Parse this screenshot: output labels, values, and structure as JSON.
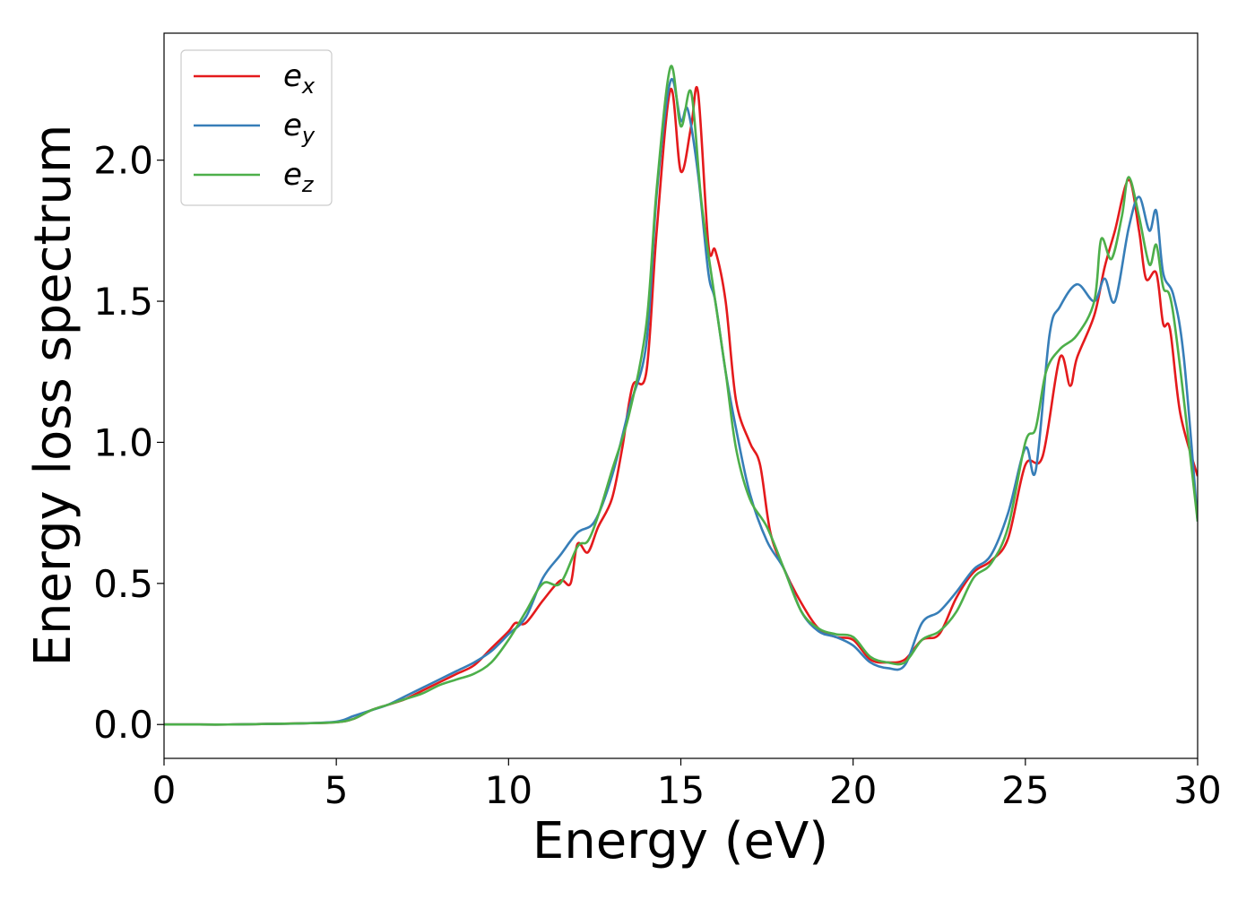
{
  "chart_data": {
    "type": "line",
    "title": "",
    "xlabel": "Energy (eV)",
    "ylabel": "Energy loss spectrum",
    "xlim": [
      0,
      30
    ],
    "ylim": [
      -0.12,
      2.45
    ],
    "xticks": [
      0,
      5,
      10,
      15,
      20,
      25,
      30
    ],
    "xtick_labels": [
      "0",
      "5",
      "10",
      "15",
      "20",
      "25",
      "30"
    ],
    "yticks": [
      0.0,
      0.5,
      1.0,
      1.5,
      2.0
    ],
    "ytick_labels": [
      "0.0",
      "0.5",
      "1.0",
      "1.5",
      "2.0"
    ],
    "grid": false,
    "legend_position": "top-left",
    "series": [
      {
        "name": "e_x",
        "label_main": "e",
        "label_sub": "x",
        "color": "#e41a1c",
        "x": [
          0,
          1,
          2,
          3,
          4,
          5,
          5.5,
          6,
          6.5,
          7,
          7.5,
          8,
          8.5,
          9,
          9.5,
          10,
          10.2,
          10.5,
          11,
          11.5,
          11.8,
          12,
          12.3,
          12.6,
          13,
          13.3,
          13.6,
          14,
          14.3,
          14.7,
          15,
          15.3,
          15.5,
          15.8,
          16,
          16.3,
          16.6,
          17,
          17.3,
          17.6,
          18,
          18.5,
          19,
          19.5,
          20,
          20.5,
          21,
          21.5,
          22,
          22.5,
          23,
          23.5,
          24,
          24.5,
          25,
          25.5,
          26,
          26.3,
          26.5,
          27,
          27.3,
          27.6,
          28,
          28.3,
          28.5,
          28.8,
          29,
          29.2,
          29.5,
          30
        ],
        "y": [
          0,
          0,
          0,
          0.002,
          0.004,
          0.008,
          0.02,
          0.05,
          0.07,
          0.09,
          0.12,
          0.15,
          0.18,
          0.21,
          0.27,
          0.33,
          0.36,
          0.36,
          0.44,
          0.51,
          0.5,
          0.64,
          0.61,
          0.7,
          0.8,
          0.98,
          1.2,
          1.25,
          1.75,
          2.25,
          1.96,
          2.12,
          2.24,
          1.7,
          1.68,
          1.5,
          1.15,
          1.0,
          0.92,
          0.68,
          0.55,
          0.43,
          0.34,
          0.31,
          0.3,
          0.23,
          0.22,
          0.23,
          0.3,
          0.32,
          0.45,
          0.54,
          0.58,
          0.66,
          0.92,
          0.95,
          1.3,
          1.2,
          1.3,
          1.45,
          1.62,
          1.75,
          1.93,
          1.75,
          1.58,
          1.6,
          1.42,
          1.4,
          1.1,
          0.88
        ]
      },
      {
        "name": "e_y",
        "label_main": "e",
        "label_sub": "y",
        "color": "#377eb8",
        "x": [
          0,
          1,
          2,
          3,
          4,
          5,
          5.5,
          6,
          6.5,
          7,
          7.5,
          8,
          8.5,
          9,
          9.5,
          10,
          10.5,
          11,
          11.5,
          12,
          12.5,
          13,
          13.5,
          14,
          14.3,
          14.7,
          15,
          15.2,
          15.5,
          15.8,
          16,
          16.3,
          16.6,
          17,
          17.5,
          18,
          18.5,
          19,
          19.5,
          20,
          20.5,
          21,
          21.5,
          22,
          22.5,
          23,
          23.5,
          24,
          24.5,
          25,
          25.3,
          25.7,
          26,
          26.5,
          27,
          27.3,
          27.6,
          28,
          28.3,
          28.6,
          28.8,
          29,
          29.3,
          29.6,
          30
        ],
        "y": [
          0,
          0,
          0,
          0.002,
          0.004,
          0.01,
          0.03,
          0.05,
          0.07,
          0.1,
          0.13,
          0.16,
          0.19,
          0.22,
          0.26,
          0.32,
          0.38,
          0.52,
          0.6,
          0.68,
          0.72,
          0.88,
          1.12,
          1.35,
          1.88,
          2.28,
          2.14,
          2.18,
          1.95,
          1.6,
          1.5,
          1.25,
          1.05,
          0.82,
          0.65,
          0.55,
          0.4,
          0.33,
          0.31,
          0.28,
          0.22,
          0.2,
          0.21,
          0.36,
          0.4,
          0.47,
          0.55,
          0.6,
          0.75,
          0.98,
          0.9,
          1.38,
          1.48,
          1.56,
          1.5,
          1.58,
          1.5,
          1.76,
          1.87,
          1.75,
          1.82,
          1.6,
          1.52,
          1.3,
          0.72
        ]
      },
      {
        "name": "e_z",
        "label_main": "e",
        "label_sub": "z",
        "color": "#4daf4a",
        "x": [
          0,
          1,
          2,
          3,
          4,
          5,
          5.5,
          6,
          6.5,
          7,
          7.5,
          8,
          8.5,
          9,
          9.5,
          10,
          10.5,
          11,
          11.5,
          12,
          12.3,
          12.6,
          13,
          13.5,
          14,
          14.3,
          14.7,
          15,
          15.3,
          15.6,
          16,
          16.3,
          16.6,
          17,
          17.5,
          18,
          18.5,
          19,
          19.5,
          20,
          20.5,
          21,
          21.5,
          22,
          22.5,
          23,
          23.5,
          24,
          24.5,
          25,
          25.3,
          25.6,
          26,
          26.5,
          27,
          27.2,
          27.5,
          27.8,
          28,
          28.3,
          28.6,
          28.8,
          29,
          29.3,
          30
        ],
        "y": [
          0,
          0,
          0,
          0.002,
          0.004,
          0.008,
          0.02,
          0.05,
          0.07,
          0.09,
          0.11,
          0.14,
          0.16,
          0.18,
          0.22,
          0.3,
          0.4,
          0.5,
          0.5,
          0.63,
          0.65,
          0.74,
          0.9,
          1.1,
          1.42,
          1.9,
          2.33,
          2.12,
          2.24,
          1.85,
          1.5,
          1.25,
          0.98,
          0.8,
          0.7,
          0.55,
          0.4,
          0.34,
          0.32,
          0.31,
          0.24,
          0.22,
          0.22,
          0.3,
          0.33,
          0.4,
          0.52,
          0.57,
          0.7,
          1.0,
          1.05,
          1.25,
          1.33,
          1.38,
          1.5,
          1.72,
          1.65,
          1.8,
          1.94,
          1.8,
          1.63,
          1.7,
          1.55,
          1.45,
          0.72
        ]
      }
    ]
  }
}
